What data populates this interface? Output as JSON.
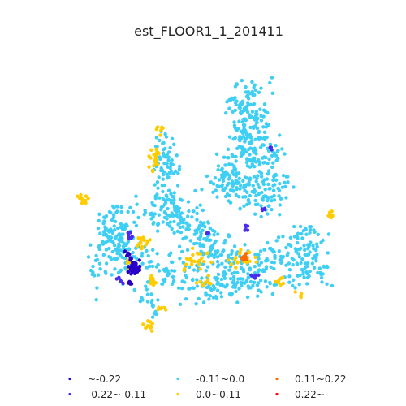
{
  "chart_data": {
    "type": "scatter",
    "title": "est_FLOOR1_1_201411",
    "xlabel": "",
    "ylabel": "",
    "axes_visible": false,
    "grid": false,
    "legend_position": "bottom",
    "series": [
      {
        "name": "~-0.22",
        "color": "#2a00c8",
        "count": 60
      },
      {
        "name": "-0.22~-0.11",
        "color": "#4a2cf0",
        "count": 40
      },
      {
        "name": "-0.11~0.0",
        "color": "#3fcff5",
        "count": 1150
      },
      {
        "name": "0.0~0.11",
        "color": "#ffcc00",
        "count": 170
      },
      {
        "name": "0.11~0.22",
        "color": "#ff6a00",
        "count": 12
      },
      {
        "name": "0.22~",
        "color": "#ff0000",
        "count": 0
      }
    ]
  }
}
